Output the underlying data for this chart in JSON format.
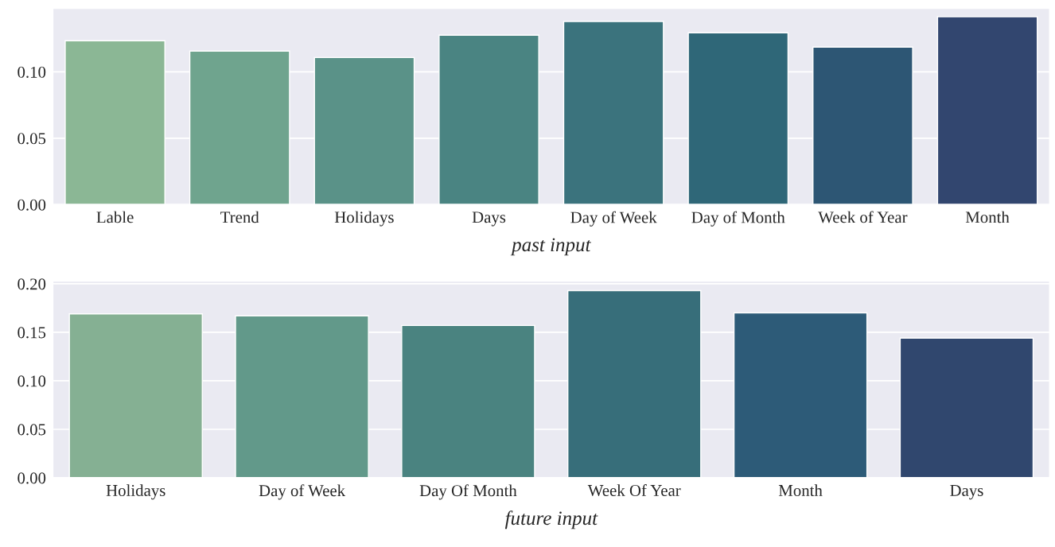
{
  "chart_data": [
    {
      "type": "bar",
      "xlabel": "past input",
      "categories": [
        "Lable",
        "Trend",
        "Holidays",
        "Days",
        "Day of Week",
        "Day of Month",
        "Week of Year",
        "Month"
      ],
      "values": [
        0.1235,
        0.1157,
        0.1108,
        0.1277,
        0.138,
        0.1295,
        0.1187,
        0.1416
      ],
      "colors": [
        "#8bb795",
        "#6fa48e",
        "#5a9288",
        "#4a8482",
        "#3b737d",
        "#2f6778",
        "#2d5674",
        "#32466f"
      ],
      "ylim": [
        0,
        0.148
      ],
      "yticks": [
        {
          "value": 0,
          "label": "0.00"
        },
        {
          "value": 0.05,
          "label": "0.05"
        },
        {
          "value": 0.1,
          "label": "0.10"
        }
      ],
      "grid": "y"
    },
    {
      "type": "bar",
      "xlabel": "future input",
      "categories": [
        "Holidays",
        "Day of Week",
        "Day Of Month",
        "Week Of Year",
        "Month",
        "Days"
      ],
      "values": [
        0.169,
        0.167,
        0.157,
        0.193,
        0.17,
        0.144
      ],
      "colors": [
        "#85b093",
        "#62998a",
        "#4a8380",
        "#376e7a",
        "#2d5b78",
        "#30476e"
      ],
      "ylim": [
        0,
        0.203
      ],
      "yticks": [
        {
          "value": 0,
          "label": "0.00"
        },
        {
          "value": 0.05,
          "label": "0.05"
        },
        {
          "value": 0.1,
          "label": "0.10"
        },
        {
          "value": 0.15,
          "label": "0.15"
        },
        {
          "value": 0.2,
          "label": "0.20"
        }
      ],
      "grid": "y"
    }
  ]
}
